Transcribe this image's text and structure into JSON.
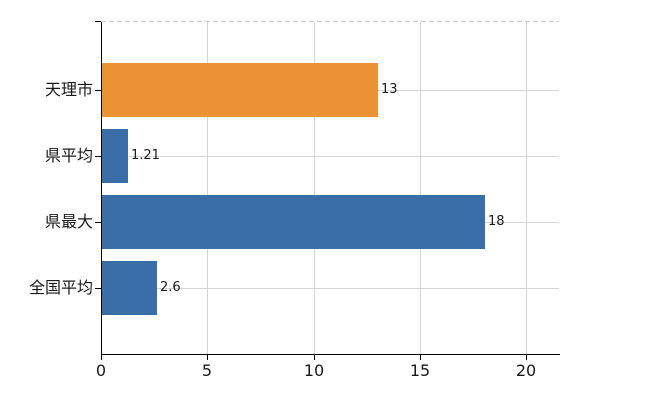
{
  "chart_data": {
    "type": "bar",
    "orientation": "horizontal",
    "title": "",
    "categories": [
      "天理市",
      "県平均",
      "県最大",
      "全国平均"
    ],
    "values": [
      13,
      1.21,
      18,
      2.6
    ],
    "value_labels": [
      "13",
      "1.21",
      "18",
      "2.6"
    ],
    "bar_colors": [
      "#EC9336",
      "#3A6EA9",
      "#3A6EA9",
      "#3A6EA9"
    ],
    "highlight_color": "#EC9336",
    "base_color": "#3A6EA9",
    "x_ticks": [
      0,
      5,
      10,
      15,
      20
    ],
    "x_tick_labels": [
      "0",
      "5",
      "10",
      "15",
      "20"
    ],
    "xlim": [
      0,
      21.55
    ],
    "grid": true,
    "legend_position": "none",
    "axis_color": "#000000",
    "gridline_color": "#d5d5d5",
    "top_border_color": "#cccccc",
    "background_color": "#ffffff",
    "label_color": "#1a1a1a"
  }
}
